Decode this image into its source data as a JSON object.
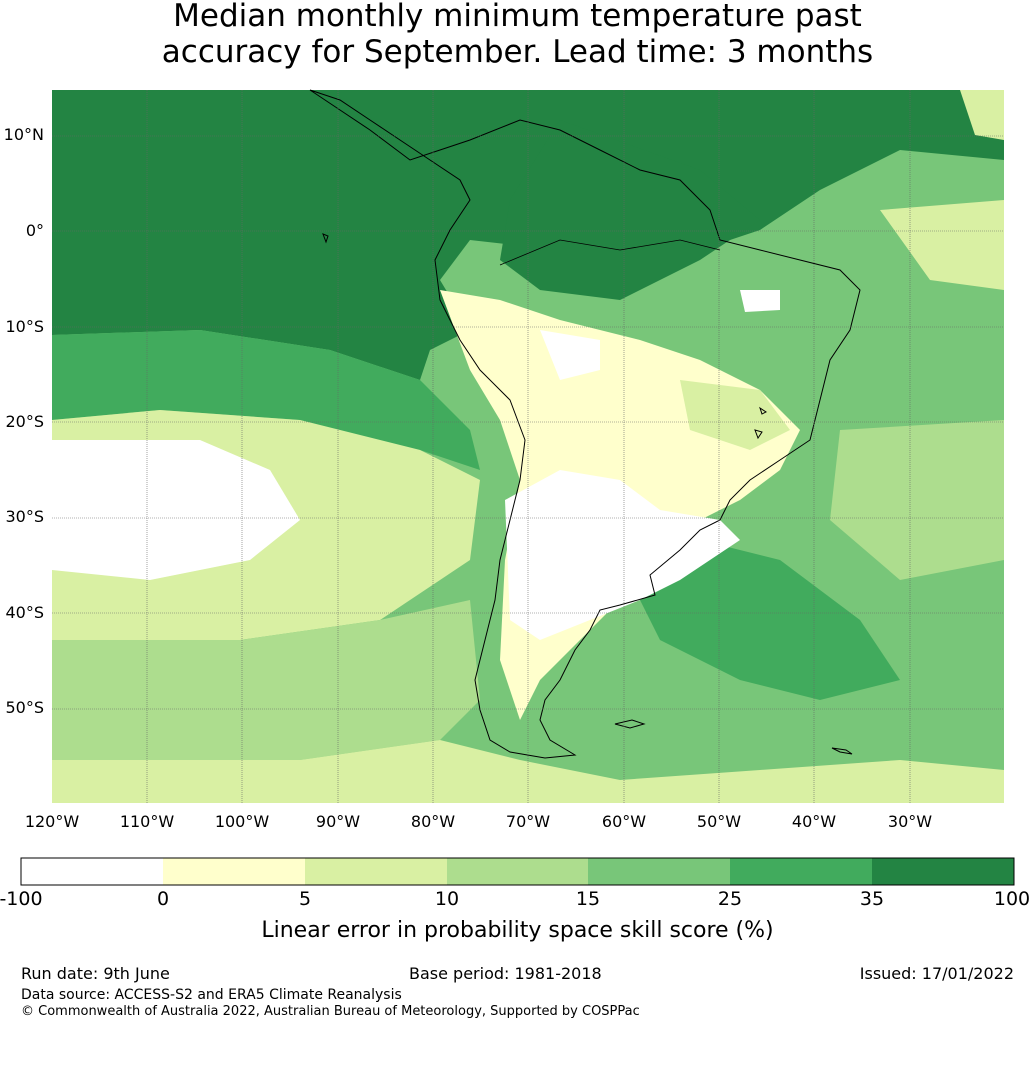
{
  "title": {
    "line1": "Median monthly minimum temperature past",
    "line2": "accuracy for September. Lead time: 3 months"
  },
  "map": {
    "lat_labels": [
      "10°N",
      "0°",
      "10°S",
      "20°S",
      "30°S",
      "40°S",
      "50°S"
    ],
    "lon_labels": [
      "120°W",
      "110°W",
      "100°W",
      "90°W",
      "80°W",
      "70°W",
      "60°W",
      "50°W",
      "40°W",
      "30°W"
    ]
  },
  "colorbar": {
    "ticks": [
      "-100",
      "0",
      "5",
      "10",
      "15",
      "25",
      "35",
      "100"
    ],
    "colors": [
      "#ffffff",
      "#ffffcc",
      "#d9f0a3",
      "#addd8e",
      "#78c679",
      "#41ab5d",
      "#238443"
    ],
    "label": "Linear error in probability space skill score (%)"
  },
  "footer": {
    "run_date": "Run date: 9th June",
    "base_period": "Base period: 1981-2018",
    "issued": "Issued: 17/01/2022",
    "data_source": "Data source: ACCESS-S2 and ERA5 Climate Reanalysis",
    "copyright": "© Commonwealth of Australia 2022, Australian Bureau of Meteorology, Supported by COSPPac"
  }
}
